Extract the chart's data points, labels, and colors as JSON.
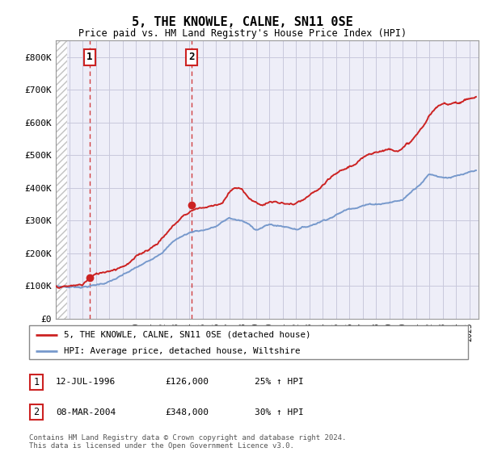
{
  "title": "5, THE KNOWLE, CALNE, SN11 0SE",
  "subtitle": "Price paid vs. HM Land Registry's House Price Index (HPI)",
  "hpi_color": "#7799cc",
  "price_color": "#cc2222",
  "dot_color": "#cc2222",
  "purchase1_x": 1996.53,
  "purchase1_y": 126000,
  "purchase1_label": "1",
  "purchase2_x": 2004.18,
  "purchase2_y": 348000,
  "purchase2_label": "2",
  "vline1_x": 1996.53,
  "vline2_x": 2004.18,
  "legend_line1": "5, THE KNOWLE, CALNE, SN11 0SE (detached house)",
  "legend_line2": "HPI: Average price, detached house, Wiltshire",
  "table_row1": [
    "1",
    "12-JUL-1996",
    "£126,000",
    "25% ↑ HPI"
  ],
  "table_row2": [
    "2",
    "08-MAR-2004",
    "£348,000",
    "30% ↑ HPI"
  ],
  "footnote": "Contains HM Land Registry data © Crown copyright and database right 2024.\nThis data is licensed under the Open Government Licence v3.0.",
  "grid_color": "#c8c8dc",
  "bg_color": "#eeeef8",
  "xlim_start": 1994.0,
  "xlim_end": 2025.7,
  "ylim": [
    0,
    850000
  ],
  "yticks": [
    0,
    100000,
    200000,
    300000,
    400000,
    500000,
    600000,
    700000,
    800000
  ],
  "ytick_labels": [
    "£0",
    "£100K",
    "£200K",
    "£300K",
    "£400K",
    "£500K",
    "£600K",
    "£700K",
    "£800K"
  ],
  "hatch_end_x": 1994.83
}
